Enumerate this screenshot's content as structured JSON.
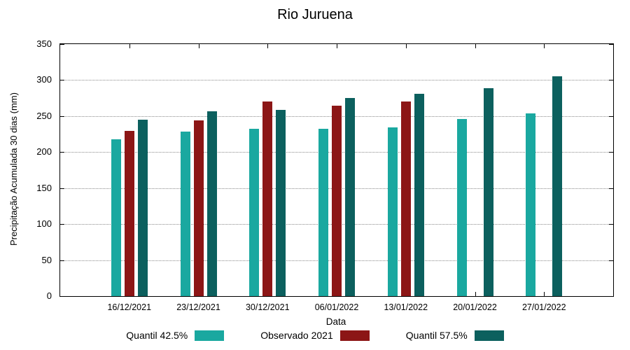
{
  "chart_data": {
    "type": "bar",
    "title": "Rio Juruena",
    "xlabel": "Data",
    "ylabel": "Precipitação Acumulada 30 dias (mm)",
    "ylim": [
      0,
      350
    ],
    "ytick_step": 50,
    "grid": true,
    "legend_position": "bottom",
    "categories": [
      "16/12/2021",
      "23/12/2021",
      "30/12/2021",
      "06/01/2022",
      "13/01/2022",
      "20/01/2022",
      "27/01/2022"
    ],
    "series": [
      {
        "name": "Quantil 42.5%",
        "color": "#1aa8a0",
        "values": [
          218,
          228,
          232,
          232,
          234,
          246,
          254
        ]
      },
      {
        "name": "Observado 2021",
        "color": "#8c1616",
        "values": [
          229,
          244,
          270,
          264,
          270,
          null,
          null
        ]
      },
      {
        "name": "Quantil 57.5%",
        "color": "#0c605e",
        "values": [
          245,
          257,
          259,
          275,
          281,
          289,
          305
        ]
      }
    ]
  }
}
